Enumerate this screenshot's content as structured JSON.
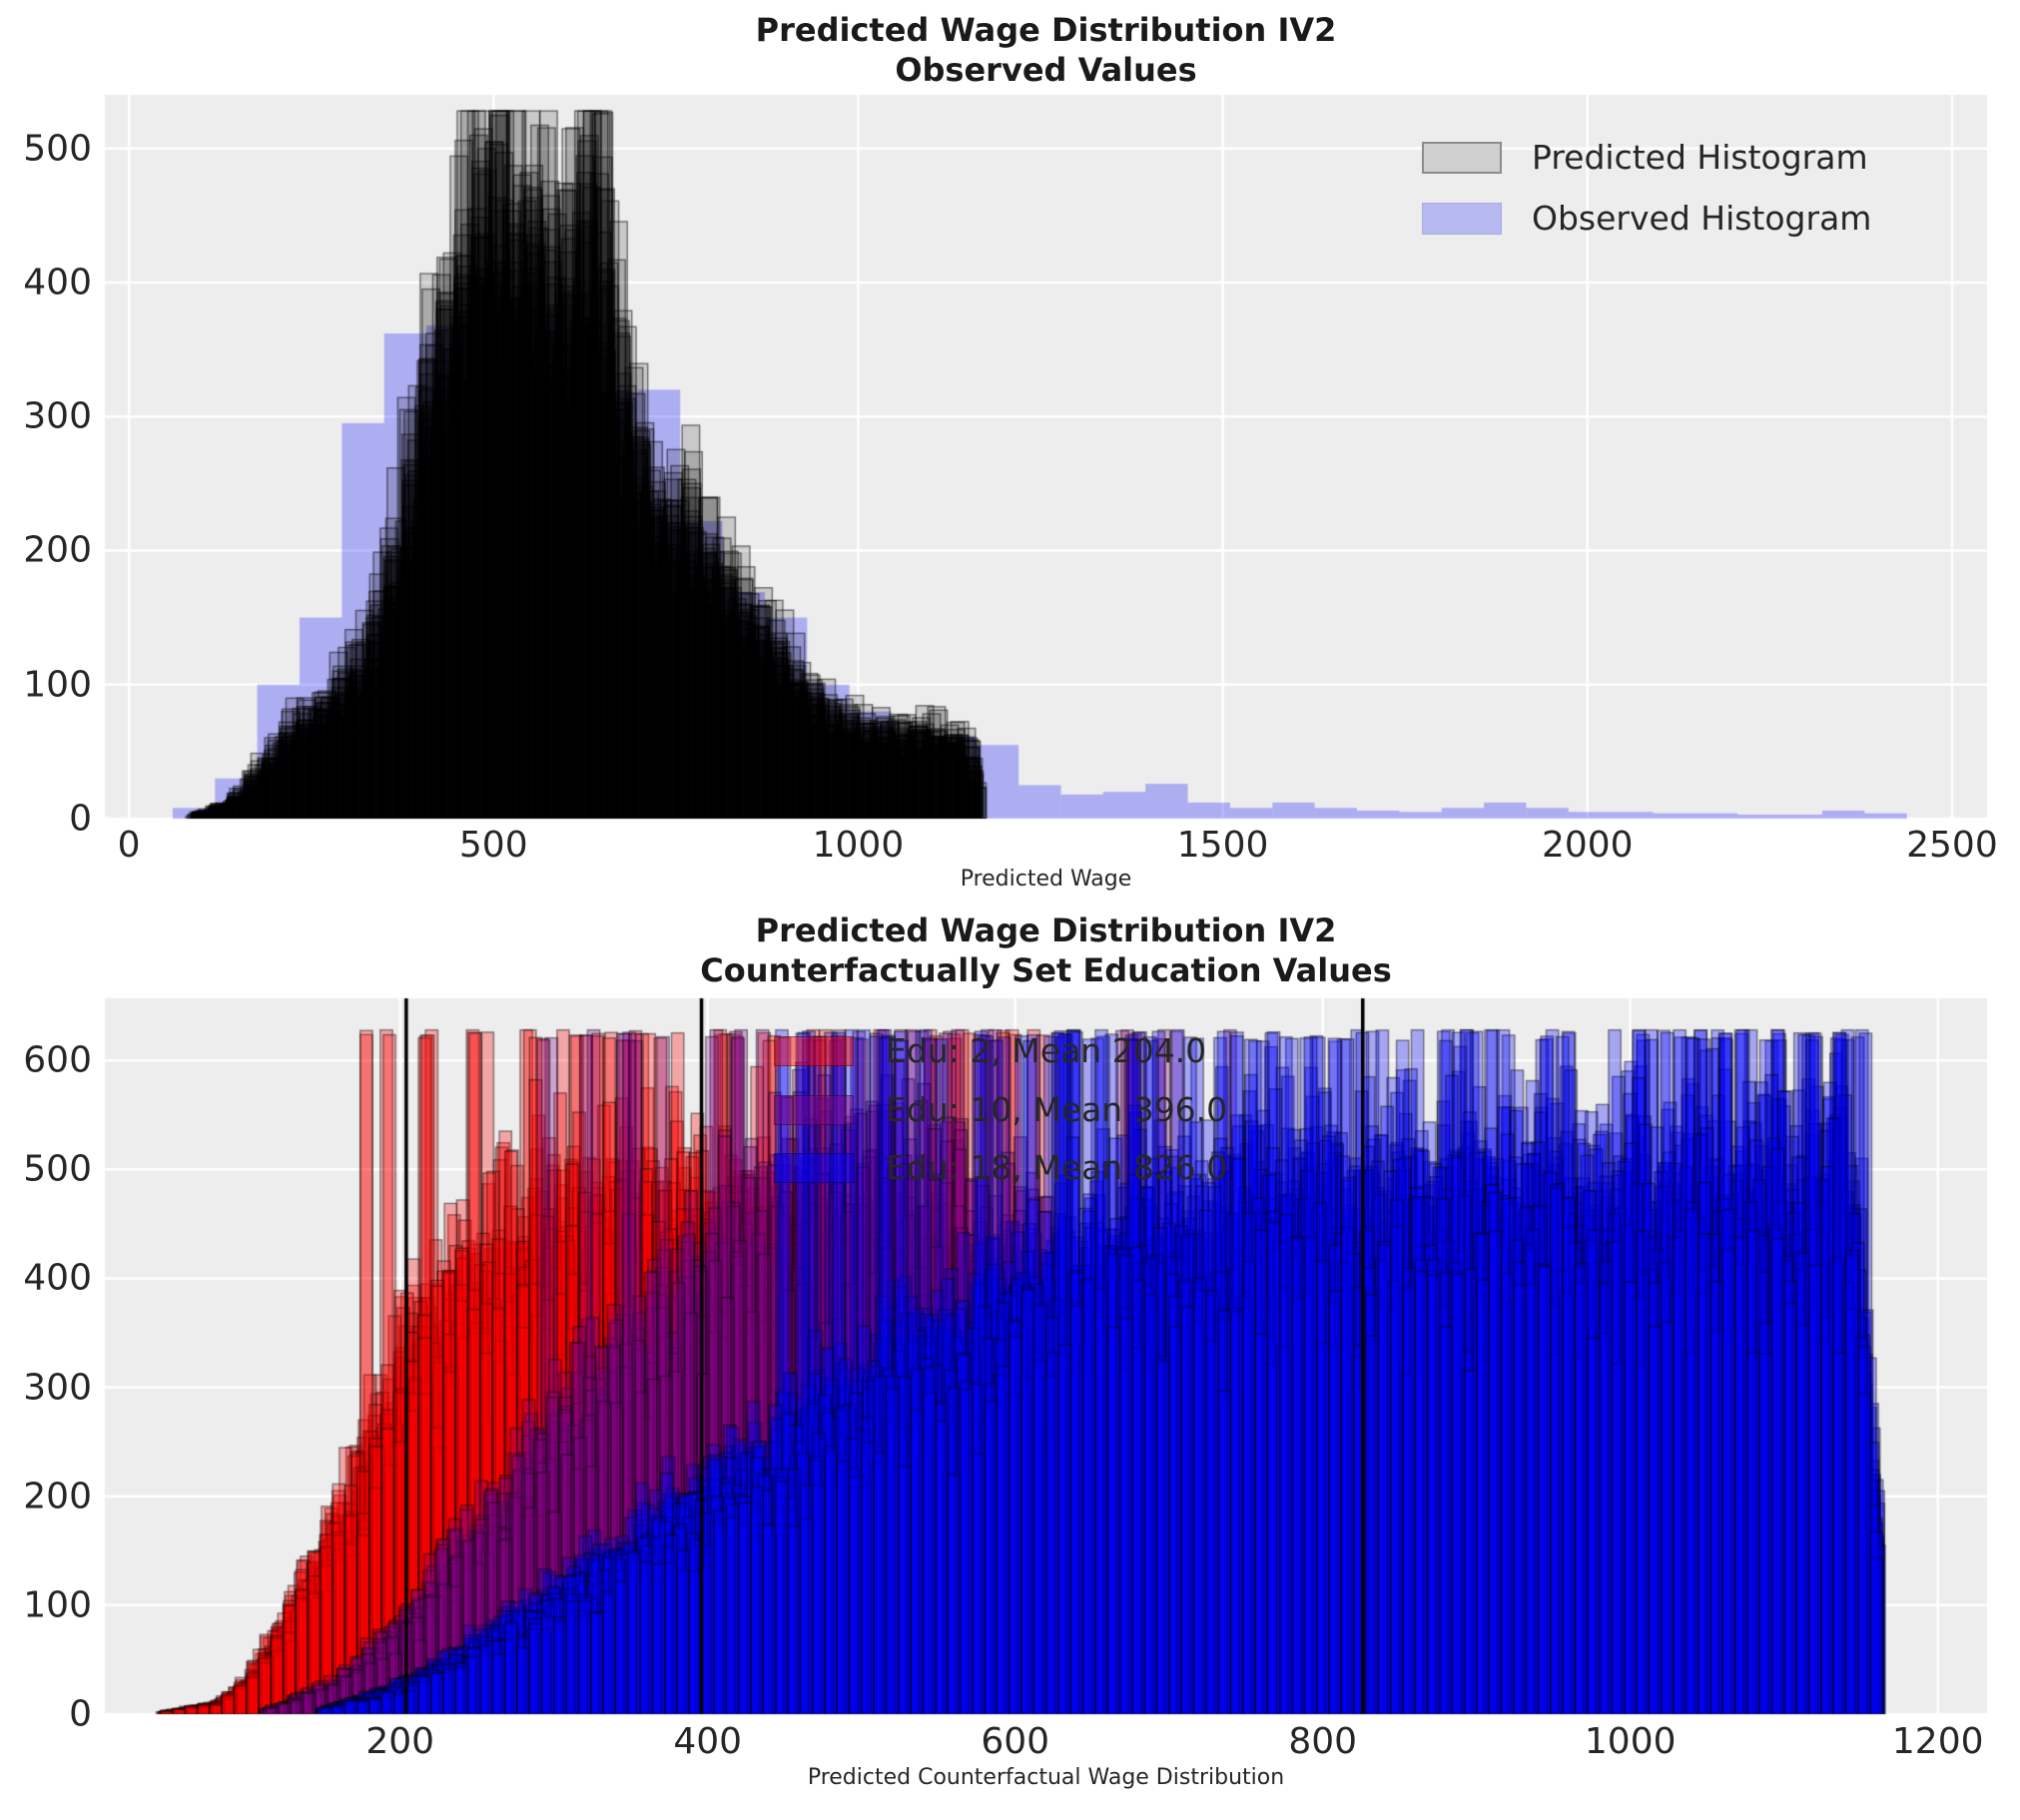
{
  "style": {
    "page_bg": "#ffffff",
    "axes_bg": "#ededed",
    "grid_color": "#ffffff",
    "text_color": "#262626",
    "mean_line_color": "#000000"
  },
  "chart_data": [
    {
      "type": "bar",
      "role": "top",
      "title_line1": "Predicted Wage Distribution IV2",
      "title_line2": "Observed Values",
      "xlabel": "Predicted Wage",
      "xlim": [
        -33,
        2548
      ],
      "ylim": [
        0,
        540
      ],
      "grid": true,
      "legend_position": "upper right",
      "xticks": [
        0,
        500,
        1000,
        1500,
        2000,
        2500
      ],
      "yticks": [
        0,
        100,
        200,
        300,
        400,
        500
      ],
      "legend": [
        {
          "label": "Predicted Histogram",
          "fill": "#cfcfcf",
          "border": "#8c8c8c"
        },
        {
          "label": "Observed Histogram",
          "fill": "#b7baf0",
          "border": "#a9ace2"
        }
      ],
      "observed": {
        "name": "Observed Histogram",
        "color": "0,0,255",
        "alpha": 0.27,
        "bin_start": 60,
        "bin_width": 58,
        "heights": [
          8,
          30,
          100,
          150,
          295,
          362,
          368,
          410,
          380,
          365,
          318,
          320,
          222,
          169,
          150,
          100,
          80,
          65,
          62,
          55,
          25,
          18,
          20,
          26,
          12,
          8,
          12,
          8,
          6,
          5,
          8,
          12,
          8,
          5,
          5,
          4,
          4,
          3,
          3,
          6,
          4
        ]
      },
      "ensemble": {
        "name": "Predicted Histogram",
        "color": "0,0,0",
        "fill_alpha": 0.15,
        "edge_alpha": 0.5,
        "n_draws": 22,
        "seed": 12345,
        "bin_width": 24,
        "range": [
          88,
          1164
        ],
        "max_height": 528,
        "spike_prob": 0,
        "spike_height": 0,
        "base_points": [
          [
            88,
            2
          ],
          [
            140,
            12
          ],
          [
            180,
            35
          ],
          [
            220,
            60
          ],
          [
            260,
            78
          ],
          [
            300,
            95
          ],
          [
            340,
            140
          ],
          [
            380,
            220
          ],
          [
            410,
            300
          ],
          [
            440,
            370
          ],
          [
            470,
            415
          ],
          [
            500,
            440
          ],
          [
            530,
            445
          ],
          [
            560,
            420
          ],
          [
            590,
            395
          ],
          [
            620,
            400
          ],
          [
            645,
            470
          ],
          [
            665,
            340
          ],
          [
            700,
            265
          ],
          [
            735,
            205
          ],
          [
            770,
            215
          ],
          [
            805,
            185
          ],
          [
            840,
            155
          ],
          [
            875,
            130
          ],
          [
            910,
            105
          ],
          [
            945,
            85
          ],
          [
            980,
            70
          ],
          [
            1015,
            62
          ],
          [
            1050,
            62
          ],
          [
            1085,
            60
          ],
          [
            1120,
            60
          ],
          [
            1150,
            58
          ],
          [
            1164,
            20
          ]
        ]
      }
    },
    {
      "type": "bar",
      "role": "bottom",
      "title_line1": "Predicted Wage Distribution IV2",
      "title_line2": "Counterfactually Set Education Values",
      "xlabel": "Predicted Counterfactual Wage Distribution",
      "xlim": [
        8,
        1232
      ],
      "ylim": [
        0,
        657
      ],
      "grid": true,
      "xticks": [
        200,
        400,
        600,
        800,
        1000,
        1200
      ],
      "yticks": [
        0,
        100,
        200,
        300,
        400,
        500,
        600
      ],
      "mean_lines": [
        204,
        396,
        826
      ],
      "annotations": [
        {
          "text": "Edu: 2, Mean 204.0",
          "swatch_color": "255,0,0"
        },
        {
          "text": "Edu: 10, Mean 396.0",
          "swatch_color": "128,0,128"
        },
        {
          "text": "Edu: 18, Mean 826.0",
          "swatch_color": "0,0,255"
        }
      ],
      "series": [
        {
          "name": "Edu: 2",
          "mean": 204.0,
          "color": "255,0,0",
          "fill_alpha": 0.3,
          "edge_alpha": 0.45,
          "n_draws": 20,
          "seed": 101,
          "bin_width": 8,
          "range": [
            45,
            722
          ],
          "max_height": 628,
          "spike_prob": 0.05,
          "spike_height": 627,
          "base_points": [
            [
              45,
              2
            ],
            [
              80,
              10
            ],
            [
              100,
              30
            ],
            [
              120,
              70
            ],
            [
              140,
              120
            ],
            [
              160,
              175
            ],
            [
              180,
              235
            ],
            [
              200,
              295
            ],
            [
              220,
              345
            ],
            [
              250,
              395
            ],
            [
              280,
              425
            ],
            [
              320,
              450
            ],
            [
              360,
              450
            ],
            [
              400,
              440
            ],
            [
              450,
              415
            ],
            [
              500,
              385
            ],
            [
              550,
              335
            ],
            [
              600,
              260
            ],
            [
              650,
              170
            ],
            [
              690,
              90
            ],
            [
              722,
              25
            ]
          ]
        },
        {
          "name": "Edu: 10",
          "mean": 396.0,
          "color": "128,0,128",
          "fill_alpha": 0.3,
          "edge_alpha": 0.45,
          "n_draws": 18,
          "seed": 202,
          "bin_width": 8,
          "range": [
            112,
            902
          ],
          "max_height": 628,
          "spike_prob": 0.04,
          "spike_height": 627,
          "base_points": [
            [
              112,
              4
            ],
            [
              160,
              30
            ],
            [
              200,
              80
            ],
            [
              250,
              165
            ],
            [
              300,
              255
            ],
            [
              350,
              340
            ],
            [
              400,
              405
            ],
            [
              450,
              450
            ],
            [
              500,
              470
            ],
            [
              550,
              455
            ],
            [
              600,
              415
            ],
            [
              650,
              360
            ],
            [
              700,
              295
            ],
            [
              750,
              225
            ],
            [
              800,
              150
            ],
            [
              850,
              80
            ],
            [
              880,
              40
            ],
            [
              902,
              10
            ]
          ]
        },
        {
          "name": "Edu: 18",
          "mean": 826.0,
          "color": "0,0,255",
          "fill_alpha": 0.3,
          "edge_alpha": 0.45,
          "n_draws": 22,
          "seed": 303,
          "bin_width": 8,
          "range": [
            148,
            1162
          ],
          "max_height": 628,
          "spike_prob": 0.07,
          "spike_height": 627,
          "base_points": [
            [
              148,
              4
            ],
            [
              200,
              25
            ],
            [
              250,
              60
            ],
            [
              300,
              100
            ],
            [
              350,
              145
            ],
            [
              400,
              190
            ],
            [
              450,
              235
            ],
            [
              500,
              275
            ],
            [
              550,
              315
            ],
            [
              600,
              355
            ],
            [
              650,
              390
            ],
            [
              700,
              415
            ],
            [
              750,
              435
            ],
            [
              800,
              450
            ],
            [
              850,
              460
            ],
            [
              950,
              455
            ],
            [
              1050,
              455
            ],
            [
              1145,
              460
            ],
            [
              1162,
              150
            ]
          ]
        }
      ]
    }
  ]
}
